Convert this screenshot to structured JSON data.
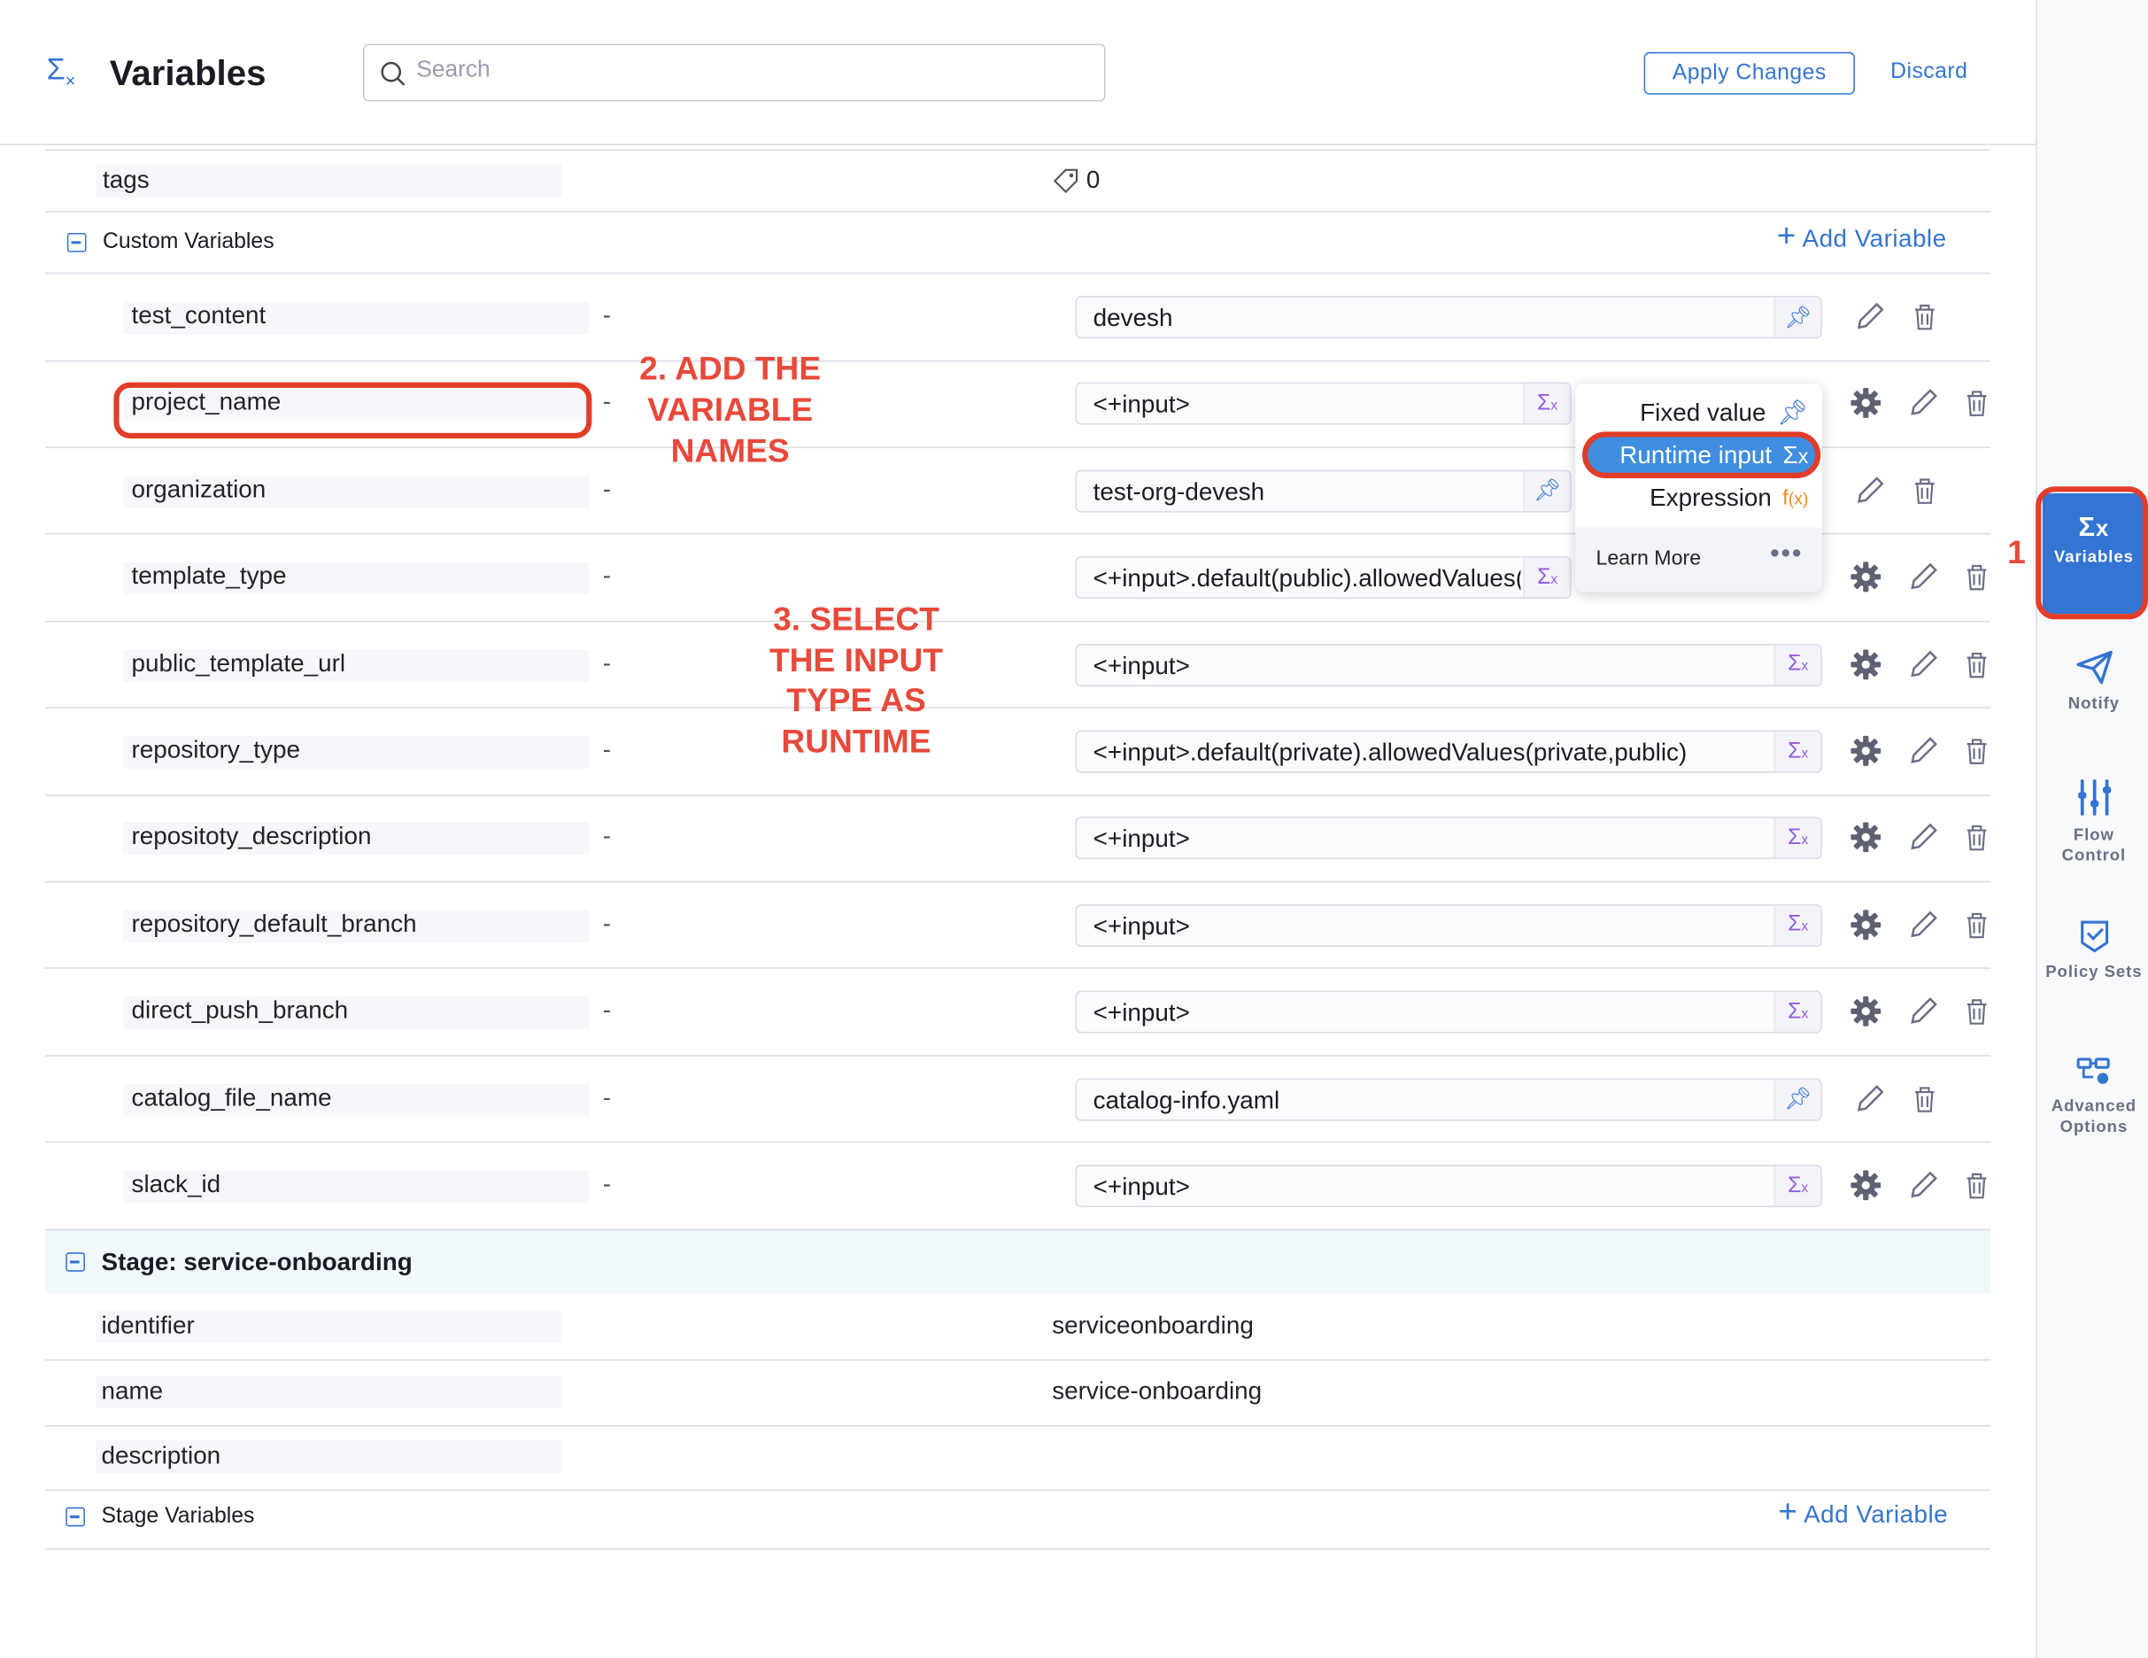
{
  "header": {
    "title": "Variables",
    "title_icon": "sigma-x-icon",
    "search_placeholder": "Search",
    "apply_label": "Apply Changes",
    "discard_label": "Discard"
  },
  "colors": {
    "accent": "#3474d2",
    "annotation": "#e8493a",
    "runtime_icon": "#8f5ce0",
    "expression_icon": "#f28b1f"
  },
  "pipeline": {
    "tags_label": "tags",
    "tags_count": "0"
  },
  "custom_variables": {
    "title": "Custom Variables",
    "add_label": "Add Variable",
    "rows": [
      {
        "name": "test_content",
        "desc": "-",
        "value": "devesh",
        "type": "fixed"
      },
      {
        "name": "project_name",
        "desc": "-",
        "value": "<+input>",
        "type": "runtime"
      },
      {
        "name": "organization",
        "desc": "-",
        "value": "test-org-devesh",
        "type": "fixed"
      },
      {
        "name": "template_type",
        "desc": "-",
        "value": "<+input>.default(public).allowedValues(publi",
        "type": "runtime"
      },
      {
        "name": "public_template_url",
        "desc": "-",
        "value": "<+input>",
        "type": "runtime"
      },
      {
        "name": "repository_type",
        "desc": "-",
        "value": "<+input>.default(private).allowedValues(private,public)",
        "type": "runtime"
      },
      {
        "name": "repositoty_description",
        "desc": "-",
        "value": "<+input>",
        "type": "runtime"
      },
      {
        "name": "repository_default_branch",
        "desc": "-",
        "value": "<+input>",
        "type": "runtime"
      },
      {
        "name": "direct_push_branch",
        "desc": "-",
        "value": "<+input>",
        "type": "runtime"
      },
      {
        "name": "catalog_file_name",
        "desc": "-",
        "value": "catalog-info.yaml",
        "type": "fixed"
      },
      {
        "name": "slack_id",
        "desc": "-",
        "value": "<+input>",
        "type": "runtime"
      }
    ]
  },
  "input_type_menu": {
    "options": [
      "Fixed value",
      "Runtime input",
      "Expression"
    ],
    "selected": "Runtime input",
    "learn_more": "Learn More"
  },
  "stage": {
    "title": "Stage: service-onboarding",
    "fields": [
      {
        "label": "identifier",
        "value": "serviceonboarding"
      },
      {
        "label": "name",
        "value": "service-onboarding"
      },
      {
        "label": "description",
        "value": ""
      }
    ],
    "variables_title": "Stage Variables",
    "add_label": "Add Variable"
  },
  "sidebar": {
    "items": [
      {
        "label": "Variables",
        "icon": "sigma-x-icon",
        "active": true
      },
      {
        "label": "Notify",
        "icon": "paper-plane-icon"
      },
      {
        "label": "Flow Control",
        "icon": "sliders-icon"
      },
      {
        "label": "Policy Sets",
        "icon": "shield-check-icon"
      },
      {
        "label": "Advanced Options",
        "icon": "advanced-options-icon"
      }
    ]
  },
  "annotations": {
    "step1": "1",
    "step2": "2. ADD THE VARIABLE NAMES",
    "step3": "3. SELECT THE INPUT TYPE AS RUNTIME"
  }
}
